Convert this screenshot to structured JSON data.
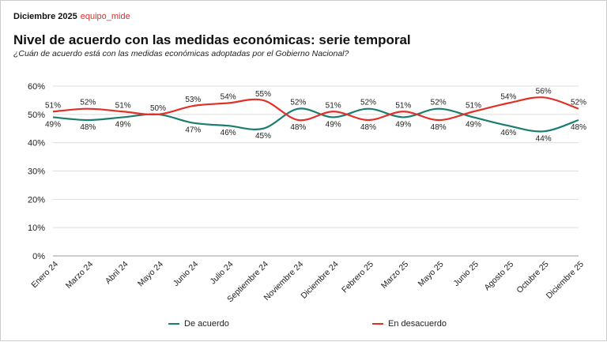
{
  "header": {
    "date": "Diciembre 2025",
    "brand": "equipo_mide"
  },
  "chart_data": {
    "type": "line",
    "title": "Nivel de acuerdo con las medidas económicas: serie temporal",
    "subtitle": "¿Cuán de acuerdo está con las medidas económicas adoptadas por el Gobierno Nacional?",
    "categories": [
      "Enero 24",
      "Marzo 24",
      "Abril 24",
      "Mayo 24",
      "Junio 24",
      "Julio 24",
      "Septiembre 24",
      "Noviembre 24",
      "Diciembre 24",
      "Febrero 25",
      "Marzo 25",
      "Mayo 25",
      "Junio 25",
      "Agosto 25",
      "Octubre 25",
      "Diciembre 25"
    ],
    "yticks": [
      "0%",
      "10%",
      "20%",
      "30%",
      "40%",
      "50%",
      "60%"
    ],
    "ylim": [
      0,
      60
    ],
    "grid": true,
    "legend_position": "bottom",
    "series": [
      {
        "name": "De acuerdo",
        "color": "#1a7d70",
        "values": [
          49,
          48,
          49,
          50,
          47,
          46,
          45,
          52,
          49,
          52,
          49,
          52,
          49,
          46,
          44,
          48
        ]
      },
      {
        "name": "En desacuerdo",
        "color": "#e0302a",
        "values": [
          51,
          52,
          51,
          50,
          53,
          54,
          55,
          48,
          51,
          48,
          51,
          48,
          51,
          54,
          56,
          52
        ]
      }
    ]
  }
}
